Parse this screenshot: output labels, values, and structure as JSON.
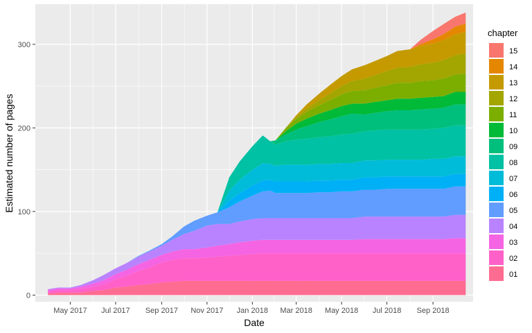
{
  "chart_data": {
    "type": "area",
    "stacked": true,
    "title": "",
    "xlabel": "Date",
    "ylabel": "Estimated number of pages",
    "xlim": [
      "2017-03-15",
      "2018-10-25"
    ],
    "ylim": [
      -8,
      348
    ],
    "x_ticks": [
      {
        "date": "2017-05-01",
        "label": "May 2017"
      },
      {
        "date": "2017-07-01",
        "label": "Jul 2017"
      },
      {
        "date": "2017-09-01",
        "label": "Sep 2017"
      },
      {
        "date": "2017-11-01",
        "label": "Nov 2017"
      },
      {
        "date": "2018-01-01",
        "label": "Jan 2018"
      },
      {
        "date": "2018-03-01",
        "label": "Mar 2018"
      },
      {
        "date": "2018-05-01",
        "label": "May 2018"
      },
      {
        "date": "2018-07-01",
        "label": "Jul 2018"
      },
      {
        "date": "2018-09-01",
        "label": "Sep 2018"
      }
    ],
    "y_ticks": [
      0,
      100,
      200,
      300
    ],
    "grid": true,
    "legend": {
      "title": "chapter",
      "position": "right"
    },
    "x": [
      "2017-04-01",
      "2017-04-15",
      "2017-04-25",
      "2017-05-01",
      "2017-05-15",
      "2017-06-01",
      "2017-06-15",
      "2017-07-01",
      "2017-07-15",
      "2017-08-01",
      "2017-08-15",
      "2017-09-01",
      "2017-09-15",
      "2017-10-01",
      "2017-10-15",
      "2017-11-01",
      "2017-11-15",
      "2017-12-01",
      "2017-12-15",
      "2018-01-01",
      "2018-01-15",
      "2018-01-25",
      "2018-02-01",
      "2018-02-15",
      "2018-03-01",
      "2018-03-15",
      "2018-04-01",
      "2018-04-15",
      "2018-05-01",
      "2018-05-15",
      "2018-06-01",
      "2018-06-15",
      "2018-07-01",
      "2018-07-15",
      "2018-08-01",
      "2018-08-15",
      "2018-09-01",
      "2018-09-15",
      "2018-10-01",
      "2018-10-15"
    ],
    "series": [
      {
        "name": "01",
        "color": "#FF6C91",
        "values": [
          2,
          3,
          3,
          3,
          3,
          5,
          6,
          9,
          10,
          12,
          13,
          15,
          16,
          17,
          17,
          17,
          17,
          17,
          17,
          17,
          17,
          17,
          17,
          17,
          17,
          17,
          17,
          17,
          17,
          17,
          17,
          17,
          17,
          17,
          17,
          17,
          17,
          17,
          17,
          17
        ]
      },
      {
        "name": "02",
        "color": "#FF61C9",
        "values": [
          2,
          3,
          3,
          3,
          4,
          5,
          7,
          10,
          13,
          17,
          20,
          24,
          26,
          27,
          27,
          28,
          29,
          30,
          31,
          32,
          33,
          33,
          33,
          33,
          33,
          33,
          33,
          33,
          33,
          33,
          33,
          33,
          33,
          33,
          33,
          33,
          33,
          33,
          33,
          33
        ]
      },
      {
        "name": "03",
        "color": "#F564E3",
        "values": [
          2,
          2,
          2,
          2,
          3,
          4,
          5,
          6,
          7,
          8,
          9,
          9,
          10,
          11,
          11,
          12,
          13,
          14,
          15,
          16,
          16,
          16,
          16,
          16,
          16,
          16,
          16,
          16,
          16,
          16,
          17,
          17,
          17,
          17,
          17,
          17,
          17,
          17,
          18,
          18
        ]
      },
      {
        "name": "04",
        "color": "#B983FF",
        "values": [
          1,
          1,
          1,
          1,
          2,
          4,
          6,
          7,
          8,
          9,
          10,
          11,
          14,
          18,
          22,
          26,
          26,
          24,
          25,
          26,
          26,
          26,
          26,
          26,
          26,
          26,
          26,
          26,
          26,
          26,
          27,
          27,
          27,
          27,
          27,
          27,
          27,
          27,
          28,
          28
        ]
      },
      {
        "name": "05",
        "color": "#619CFF",
        "values": [
          0,
          0,
          0,
          0,
          0,
          0,
          0,
          0,
          0,
          1,
          1,
          2,
          4,
          9,
          12,
          12,
          14,
          20,
          24,
          28,
          32,
          33,
          30,
          30,
          30,
          30,
          31,
          31,
          32,
          32,
          32,
          32,
          33,
          33,
          33,
          33,
          33,
          33,
          34,
          34
        ]
      },
      {
        "name": "06",
        "color": "#00B0F6",
        "values": [
          0,
          0,
          0,
          0,
          0,
          0,
          0,
          0,
          0,
          0,
          0,
          0,
          0,
          0,
          0,
          0,
          0,
          8,
          10,
          12,
          13,
          13,
          14,
          14,
          14,
          14,
          14,
          14,
          14,
          14,
          15,
          15,
          15,
          15,
          15,
          15,
          15,
          15,
          15,
          15
        ]
      },
      {
        "name": "07",
        "color": "#00BCD8",
        "values": [
          0,
          0,
          0,
          0,
          0,
          0,
          0,
          0,
          0,
          0,
          0,
          0,
          0,
          0,
          0,
          0,
          0,
          12,
          16,
          19,
          21,
          19,
          19,
          20,
          20,
          20,
          20,
          20,
          20,
          20,
          20,
          20,
          20,
          20,
          20,
          20,
          21,
          21,
          21,
          21
        ]
      },
      {
        "name": "08",
        "color": "#00C1A3",
        "values": [
          0,
          0,
          0,
          0,
          0,
          0,
          0,
          0,
          0,
          0,
          0,
          0,
          0,
          0,
          0,
          0,
          0,
          16,
          22,
          28,
          33,
          27,
          25,
          28,
          30,
          31,
          32,
          33,
          34,
          35,
          35,
          36,
          36,
          36,
          36,
          36,
          36,
          37,
          37,
          37
        ]
      },
      {
        "name": "09",
        "color": "#00BF7D",
        "values": [
          0,
          0,
          0,
          0,
          0,
          0,
          0,
          0,
          0,
          0,
          0,
          0,
          0,
          0,
          0,
          0,
          0,
          0,
          0,
          0,
          0,
          0,
          5,
          8,
          12,
          15,
          18,
          20,
          22,
          24,
          20,
          21,
          22,
          23,
          23,
          24,
          24,
          24,
          25,
          25
        ]
      },
      {
        "name": "10",
        "color": "#00BA38",
        "values": [
          0,
          0,
          0,
          0,
          0,
          0,
          0,
          0,
          0,
          0,
          0,
          0,
          0,
          0,
          0,
          0,
          0,
          0,
          0,
          0,
          0,
          0,
          0,
          4,
          7,
          9,
          10,
          11,
          12,
          12,
          13,
          13,
          13,
          14,
          14,
          14,
          14,
          14,
          15,
          15
        ]
      },
      {
        "name": "11",
        "color": "#7CAE00",
        "values": [
          0,
          0,
          0,
          0,
          0,
          0,
          0,
          0,
          0,
          0,
          0,
          0,
          0,
          0,
          0,
          0,
          0,
          0,
          0,
          0,
          0,
          0,
          0,
          4,
          6,
          8,
          10,
          12,
          14,
          15,
          16,
          17,
          18,
          19,
          19,
          20,
          20,
          21,
          21,
          22
        ]
      },
      {
        "name": "12",
        "color": "#A3A500",
        "values": [
          0,
          0,
          0,
          0,
          0,
          0,
          0,
          0,
          0,
          0,
          0,
          0,
          0,
          0,
          0,
          0,
          0,
          0,
          0,
          0,
          0,
          0,
          0,
          0,
          2,
          4,
          6,
          8,
          10,
          12,
          14,
          15,
          17,
          18,
          19,
          20,
          21,
          22,
          23,
          24
        ]
      },
      {
        "name": "13",
        "color": "#C49A00",
        "values": [
          0,
          0,
          0,
          0,
          0,
          0,
          0,
          0,
          0,
          0,
          0,
          0,
          0,
          0,
          0,
          0,
          0,
          0,
          0,
          0,
          0,
          0,
          0,
          0,
          2,
          5,
          8,
          10,
          12,
          14,
          16,
          17,
          18,
          20,
          21,
          22,
          23,
          24,
          25,
          26
        ]
      },
      {
        "name": "14",
        "color": "#E58700",
        "values": [
          0,
          0,
          0,
          0,
          0,
          0,
          0,
          0,
          0,
          0,
          0,
          0,
          0,
          0,
          0,
          0,
          0,
          0,
          0,
          0,
          0,
          0,
          0,
          0,
          0,
          0,
          0,
          0,
          0,
          0,
          0,
          0,
          0,
          0,
          0,
          2,
          5,
          7,
          9,
          10
        ]
      },
      {
        "name": "15",
        "color": "#F8766D",
        "values": [
          0,
          0,
          0,
          0,
          0,
          0,
          0,
          0,
          0,
          0,
          0,
          0,
          0,
          0,
          0,
          0,
          0,
          0,
          0,
          0,
          0,
          0,
          0,
          0,
          0,
          0,
          0,
          0,
          0,
          0,
          0,
          0,
          0,
          0,
          0,
          5,
          10,
          12,
          12,
          13
        ]
      }
    ]
  }
}
